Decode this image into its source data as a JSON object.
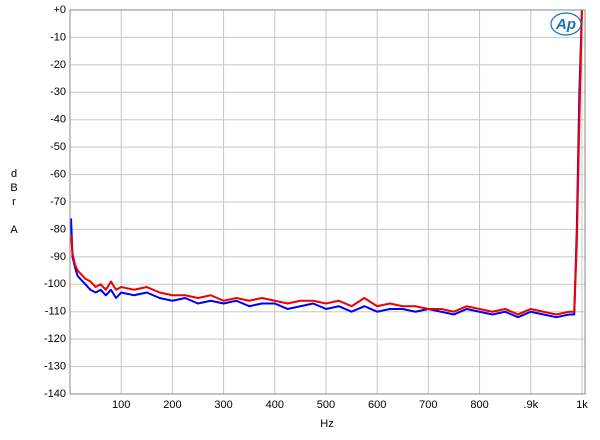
{
  "chart_data": {
    "type": "line",
    "logo": "Ap",
    "xlabel": "Hz",
    "ylabel": "dBr A",
    "x": [
      2,
      5,
      10,
      15,
      20,
      30,
      40,
      50,
      60,
      70,
      80,
      90,
      100,
      125,
      150,
      175,
      200,
      225,
      250,
      275,
      300,
      325,
      350,
      375,
      400,
      425,
      450,
      475,
      500,
      525,
      550,
      575,
      600,
      625,
      650,
      675,
      700,
      725,
      750,
      775,
      800,
      825,
      850,
      875,
      900,
      925,
      950,
      975,
      985,
      990,
      995,
      1000
    ],
    "series": [
      {
        "color": "#0000ee",
        "values": [
          -76,
          -90,
          -94,
          -97,
          -98,
          -100,
          -102,
          -103,
          -102,
          -104,
          -102,
          -105,
          -103,
          -104,
          -103,
          -105,
          -106,
          -105,
          -107,
          -106,
          -107,
          -106,
          -108,
          -107,
          -107,
          -109,
          -108,
          -107,
          -109,
          -108,
          -110,
          -108,
          -110,
          -109,
          -109,
          -110,
          -109,
          -110,
          -111,
          -109,
          -110,
          -111,
          -110,
          -112,
          -110,
          -111,
          -112,
          -111,
          -111,
          -80,
          -30,
          0
        ]
      },
      {
        "color": "#ee0000",
        "values": [
          -82,
          -89,
          -93,
          -95,
          -96,
          -98,
          -99,
          -101,
          -100,
          -102,
          -99,
          -102,
          -101,
          -102,
          -101,
          -103,
          -104,
          -104,
          -105,
          -104,
          -106,
          -105,
          -106,
          -105,
          -106,
          -107,
          -106,
          -106,
          -107,
          -106,
          -108,
          -105,
          -108,
          -107,
          -108,
          -108,
          -109,
          -109,
          -110,
          -108,
          -109,
          -110,
          -109,
          -111,
          -109,
          -110,
          -111,
          -110,
          -110,
          -85,
          -40,
          0
        ]
      }
    ],
    "xlim": [
      0,
      1006
    ],
    "xticks": [
      100,
      200,
      300,
      400,
      500,
      600,
      700,
      800,
      {
        "value": 900,
        "label": ".9k"
      },
      {
        "value": 1000,
        "label": "1k"
      }
    ],
    "ylim": [
      -140,
      0
    ],
    "yticks": [
      {
        "value": 0,
        "label": "+0"
      },
      -10,
      -20,
      -30,
      -40,
      -50,
      -60,
      -70,
      -80,
      -90,
      -100,
      -110,
      -120,
      -130,
      -140
    ],
    "grid": true
  }
}
